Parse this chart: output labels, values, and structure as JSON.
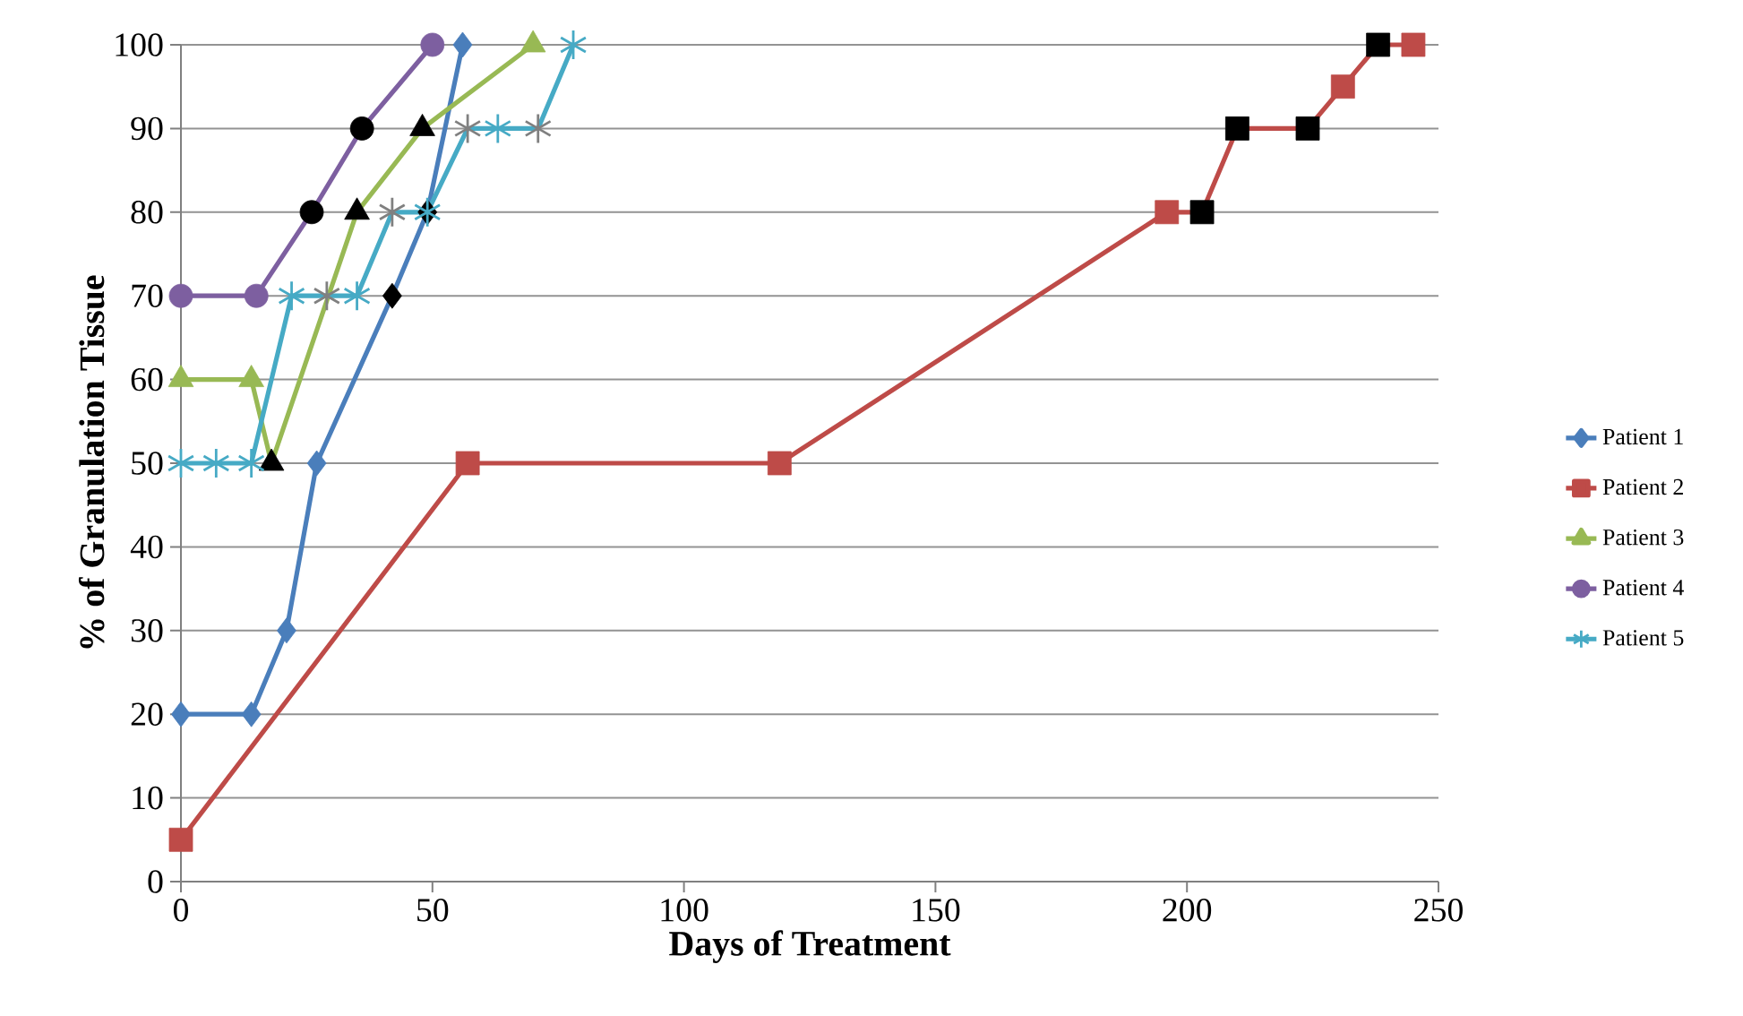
{
  "chart_data": {
    "type": "line",
    "xlabel": "Days of Treatment",
    "ylabel": "% of Granulation Tissue",
    "xlim": [
      0,
      250
    ],
    "ylim": [
      0,
      100
    ],
    "xticks": [
      0,
      50,
      100,
      150,
      200,
      250
    ],
    "yticks": [
      0,
      10,
      20,
      30,
      40,
      50,
      60,
      70,
      80,
      90,
      100
    ],
    "grid": "y",
    "legend": "right",
    "series": [
      {
        "name": "Patient 1",
        "color": "#4a7ebb",
        "marker": "diamond",
        "x": [
          0,
          14,
          21,
          27,
          42,
          49,
          56
        ],
        "values": [
          20,
          20,
          30,
          50,
          70,
          80,
          100
        ],
        "colors": [
          "#4a7ebb",
          "#4a7ebb",
          "#4a7ebb",
          "#4a7ebb",
          "#000000",
          "#000000",
          "#4a7ebb"
        ]
      },
      {
        "name": "Patient 2",
        "color": "#be4b48",
        "marker": "square",
        "x": [
          0,
          57,
          119,
          196,
          203,
          210,
          224,
          231,
          238,
          245
        ],
        "values": [
          5,
          50,
          50,
          80,
          80,
          90,
          90,
          95,
          100,
          100
        ],
        "colors": [
          "#be4b48",
          "#be4b48",
          "#be4b48",
          "#be4b48",
          "#000000",
          "#000000",
          "#000000",
          "#be4b48",
          "#000000",
          "#be4b48"
        ]
      },
      {
        "name": "Patient 3",
        "color": "#98b954",
        "marker": "triangle",
        "x": [
          0,
          14,
          18,
          35,
          48,
          70
        ],
        "values": [
          60,
          60,
          50,
          80,
          90,
          100
        ],
        "colors": [
          "#98b954",
          "#98b954",
          "#000000",
          "#000000",
          "#000000",
          "#98b954"
        ]
      },
      {
        "name": "Patient 4",
        "color": "#7d5fa0",
        "marker": "circle",
        "x": [
          0,
          15,
          26,
          36,
          50
        ],
        "values": [
          70,
          70,
          80,
          90,
          100
        ],
        "colors": [
          "#7d5fa0",
          "#7d5fa0",
          "#000000",
          "#000000",
          "#7d5fa0"
        ]
      },
      {
        "name": "Patient 5",
        "color": "#46aac5",
        "marker": "cross",
        "x": [
          0,
          7,
          14,
          22,
          29,
          35,
          42,
          49,
          57,
          63,
          71,
          78
        ],
        "values": [
          50,
          50,
          50,
          70,
          70,
          70,
          80,
          80,
          90,
          90,
          90,
          100
        ],
        "colors": [
          "#46aac5",
          "#46aac5",
          "#46aac5",
          "#46aac5",
          "#808080",
          "#46aac5",
          "#808080",
          "#46aac5",
          "#808080",
          "#46aac5",
          "#808080",
          "#46aac5"
        ]
      }
    ]
  }
}
